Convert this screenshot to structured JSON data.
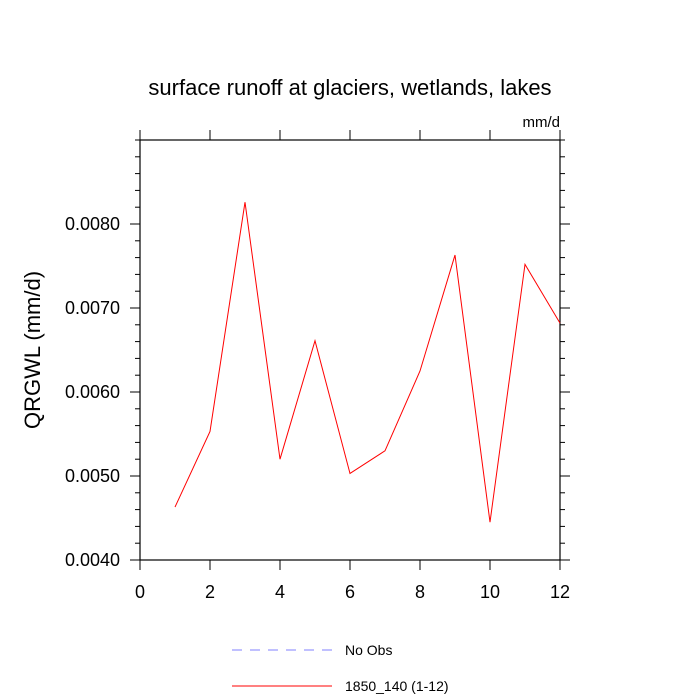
{
  "chart_data": {
    "type": "line",
    "title": "surface runoff at glaciers, wetlands, lakes",
    "units_label": "mm/d",
    "xlabel": "",
    "ylabel": "QRGWL  (mm/d)",
    "xlim": [
      0,
      12
    ],
    "ylim": [
      0.004,
      0.009
    ],
    "x_ticks": [
      0,
      2,
      4,
      6,
      8,
      10,
      12
    ],
    "x_tick_labels": [
      "0",
      "2",
      "4",
      "6",
      "8",
      "10",
      "12"
    ],
    "y_ticks": [
      0.004,
      0.005,
      0.006,
      0.007,
      0.008
    ],
    "y_tick_labels": [
      "0.0040",
      "0.0050",
      "0.0060",
      "0.0070",
      "0.0080"
    ],
    "grid": false,
    "legend_position": "bottom-center",
    "series": [
      {
        "name": "1850_140 (1-12)",
        "color": "#ff0000",
        "style": "solid",
        "x": [
          1,
          2,
          3,
          4,
          5,
          6,
          7,
          8,
          9,
          10,
          11,
          12
        ],
        "y": [
          0.00463,
          0.00553,
          0.00826,
          0.0052,
          0.00661,
          0.00503,
          0.0053,
          0.00625,
          0.00763,
          0.00445,
          0.00752,
          0.00682
        ]
      }
    ],
    "legend": [
      {
        "label": "No Obs",
        "color": "#8080ff",
        "style": "dashed"
      },
      {
        "label": "1850_140 (1-12)",
        "color": "#ff0000",
        "style": "solid"
      }
    ]
  }
}
